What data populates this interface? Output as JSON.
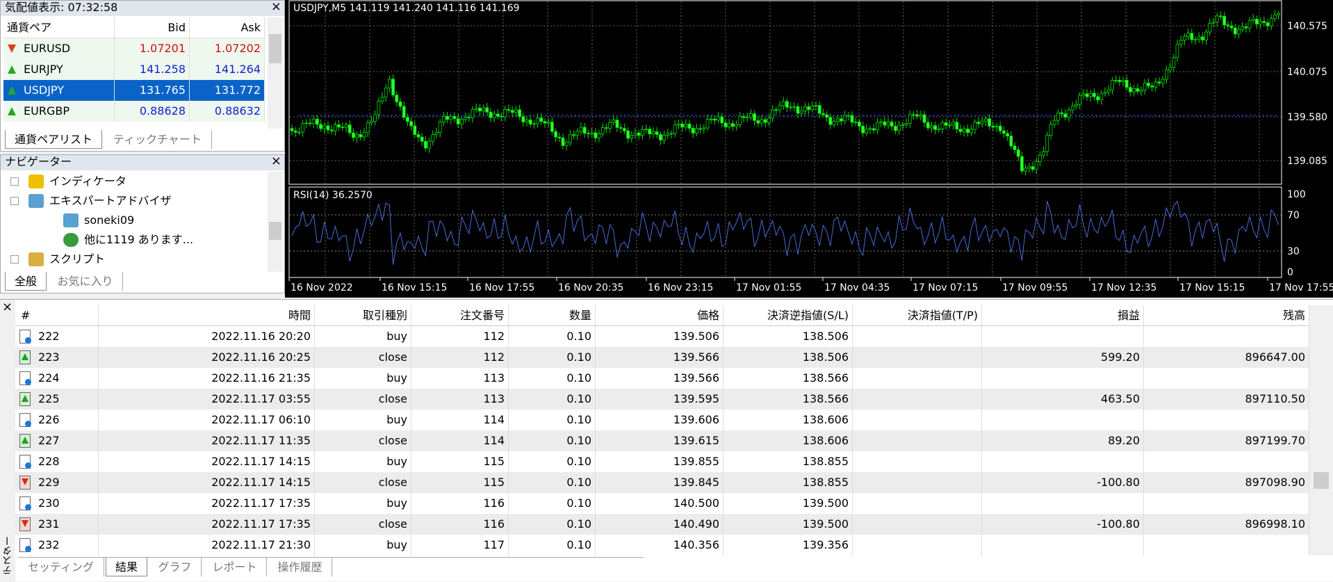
{
  "market_watch": {
    "title": "気配値表示: 07:32:58",
    "headers": [
      "通貨ペア",
      "Bid",
      "Ask"
    ],
    "rows": [
      [
        "EURUSD",
        "1.07201",
        "1.07202"
      ],
      [
        "EURJPY",
        "141.258",
        "141.264"
      ],
      [
        "USDJPY",
        "131.765",
        "131.772"
      ],
      [
        "EURGBP",
        "0.88628",
        "0.88632"
      ]
    ],
    "tabs": [
      "通貨ペアリスト",
      "ティックチャート"
    ]
  },
  "navigator": {
    "title": "ナビゲーター",
    "items": [
      "インディケータ",
      "エキスパートアドバイザ",
      "soneki09",
      "他に1119 あります...",
      "スクリプト"
    ],
    "tabs": [
      "全般",
      "お気に入り"
    ]
  },
  "chart": {
    "header": "USDJPY,M5  141.119 141.240 141.116 141.169",
    "price_labels": [
      "140.575",
      "140.075",
      "139.580",
      "139.085"
    ],
    "rsi_label": "RSI(14) 36.2570",
    "rsi_levels": [
      "100",
      "70",
      "30",
      "0"
    ],
    "time_labels": [
      "16 Nov 2022",
      "16 Nov 15:15",
      "16 Nov 17:55",
      "16 Nov 20:35",
      "16 Nov 23:15",
      "17 Nov 01:55",
      "17 Nov 04:35",
      "17 Nov 07:15",
      "17 Nov 09:55",
      "17 Nov 12:35",
      "17 Nov 15:15",
      "17 Nov 17:55"
    ]
  },
  "tester": {
    "side_label": "テスター",
    "headers": [
      "#",
      "時間",
      "取引種別",
      "注文番号",
      "数量",
      "価格",
      "決済逆指値(S/L)",
      "決済指値(T/P)",
      "損益",
      "残高"
    ],
    "rows": [
      [
        "222",
        "2022.11.16 20:20",
        "buy",
        "112",
        "0.10",
        "139.506",
        "138.506",
        null,
        null,
        null
      ],
      [
        "223",
        "2022.11.16 20:25",
        "close",
        "112",
        "0.10",
        "139.566",
        "138.506",
        null,
        "599.20",
        "896647.00"
      ],
      [
        "224",
        "2022.11.16 21:35",
        "buy",
        "113",
        "0.10",
        "139.566",
        "138.566",
        null,
        null,
        null
      ],
      [
        "225",
        "2022.11.17 03:55",
        "close",
        "113",
        "0.10",
        "139.595",
        "138.566",
        null,
        "463.50",
        "897110.50"
      ],
      [
        "226",
        "2022.11.17 06:10",
        "buy",
        "114",
        "0.10",
        "139.606",
        "138.606",
        null,
        null,
        null
      ],
      [
        "227",
        "2022.11.17 11:35",
        "close",
        "114",
        "0.10",
        "139.615",
        "138.606",
        null,
        "89.20",
        "897199.70"
      ],
      [
        "228",
        "2022.11.17 14:15",
        "buy",
        "115",
        "0.10",
        "139.855",
        "138.855",
        null,
        null,
        null
      ],
      [
        "229",
        "2022.11.17 14:15",
        "close",
        "115",
        "0.10",
        "139.845",
        "138.855",
        null,
        "-100.80",
        "897098.90"
      ],
      [
        "230",
        "2022.11.17 17:35",
        "buy",
        "116",
        "0.10",
        "140.500",
        "139.500",
        null,
        null,
        null
      ],
      [
        "231",
        "2022.11.17 17:35",
        "close",
        "116",
        "0.10",
        "140.490",
        "139.500",
        null,
        "-100.80",
        "896998.10"
      ],
      [
        "232",
        "2022.11.17 21:30",
        "buy",
        "117",
        "0.10",
        "140.356",
        "139.356",
        null,
        null,
        null
      ]
    ],
    "tabs": [
      "セッティング",
      "結果",
      "グラフ",
      "レポート",
      "操作履歴"
    ]
  }
}
